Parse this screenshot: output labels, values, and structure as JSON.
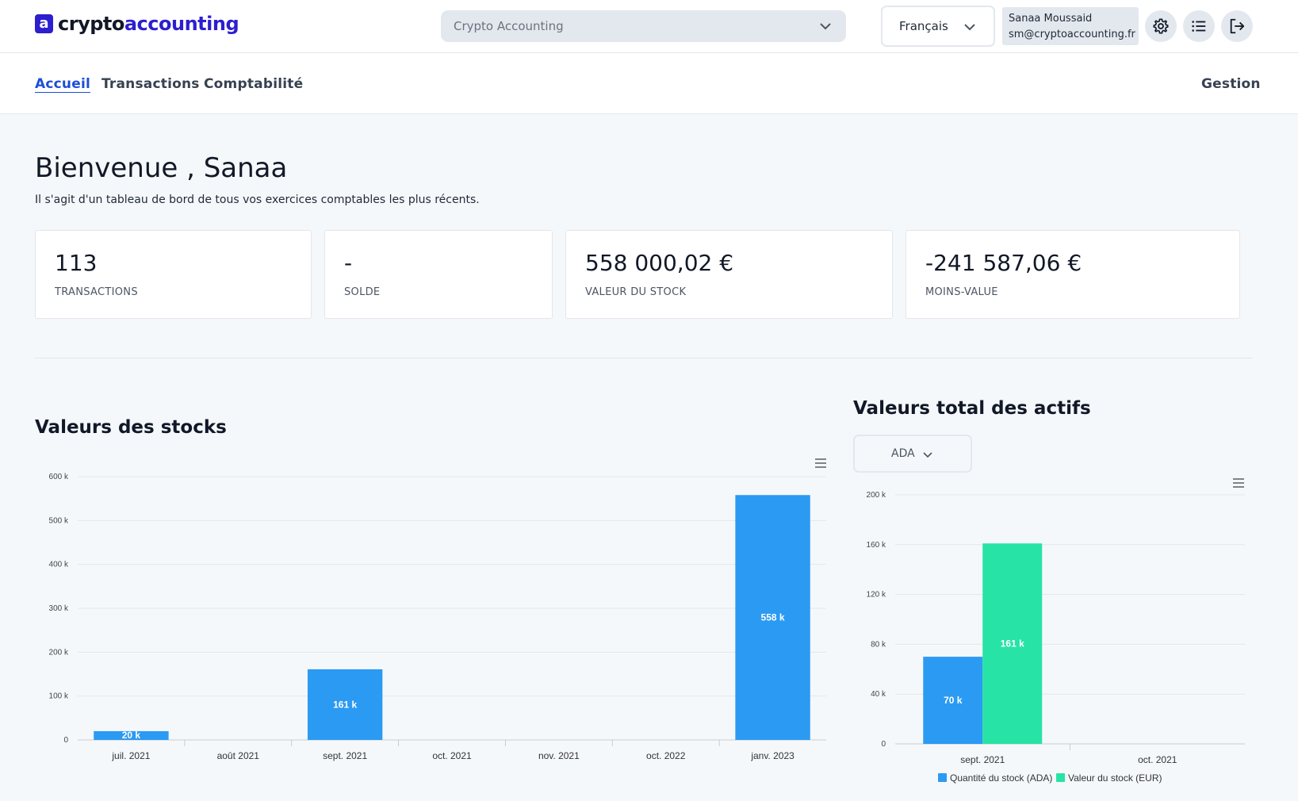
{
  "header": {
    "logo_mark": "a",
    "logo_part1": "crypto",
    "logo_part2": "accounting",
    "company_select": "Crypto Accounting",
    "language_select": "Français",
    "user_name": "Sanaa Moussaid",
    "user_email": "sm@cryptoaccounting.fr",
    "icons": [
      "gear-icon",
      "list-icon",
      "logout-icon"
    ]
  },
  "nav": {
    "items": [
      {
        "label": "Accueil",
        "active": true
      },
      {
        "label": "Transactions",
        "active": false
      },
      {
        "label": "Comptabilité",
        "active": false
      }
    ],
    "right_item": "Gestion"
  },
  "main": {
    "welcome": "Bienvenue , Sanaa",
    "subtitle": "Il s'agit d'un tableau de bord de tous vos exercices comptables les plus récents.",
    "stats": [
      {
        "value": "113",
        "label": "TRANSACTIONS"
      },
      {
        "value": "-",
        "label": "SOLDE"
      },
      {
        "value": "558 000,02 €",
        "label": "VALEUR DU STOCK"
      },
      {
        "value": "-241 587,06 €",
        "label": "MOINS-VALUE"
      }
    ],
    "stock_title": "Valeurs des stocks",
    "assets_title": "Valeurs total des actifs",
    "asset_select": "ADA"
  },
  "colors": {
    "brand": "#2d1fcf",
    "bar_blue": "#2b9af3",
    "bar_green": "#27e3a5"
  },
  "chart_data": [
    {
      "type": "bar",
      "title": "Valeurs des stocks",
      "categories": [
        "juil. 2021",
        "août 2021",
        "sept. 2021",
        "oct. 2021",
        "nov. 2021",
        "oct. 2022",
        "janv. 2023"
      ],
      "values": [
        20000,
        0,
        161000,
        0,
        0,
        0,
        558000
      ],
      "data_labels": [
        "20 k",
        "",
        "161 k",
        "",
        "",
        "",
        "558 k"
      ],
      "ylim": [
        0,
        600000
      ],
      "yticks": [
        0,
        100000,
        200000,
        300000,
        400000,
        500000,
        600000
      ],
      "ytick_labels": [
        "0",
        "100 k",
        "200 k",
        "300 k",
        "400 k",
        "500 k",
        "600 k"
      ],
      "grid": true,
      "color": "#2b9af3"
    },
    {
      "type": "bar",
      "title": "Valeurs total des actifs",
      "categories": [
        "sept. 2021",
        "oct. 2021"
      ],
      "series": [
        {
          "name": "Quantité du stock (ADA)",
          "values": [
            70000,
            0
          ],
          "data_labels": [
            "70 k",
            ""
          ],
          "color": "#2b9af3"
        },
        {
          "name": "Valeur du stock (EUR)",
          "values": [
            161000,
            0
          ],
          "data_labels": [
            "161 k",
            ""
          ],
          "color": "#27e3a5"
        }
      ],
      "ylim": [
        0,
        200000
      ],
      "yticks": [
        0,
        40000,
        80000,
        120000,
        160000,
        200000
      ],
      "ytick_labels": [
        "0",
        "40 k",
        "80 k",
        "120 k",
        "160 k",
        "200 k"
      ],
      "grid": true,
      "legend": "bottom"
    }
  ]
}
